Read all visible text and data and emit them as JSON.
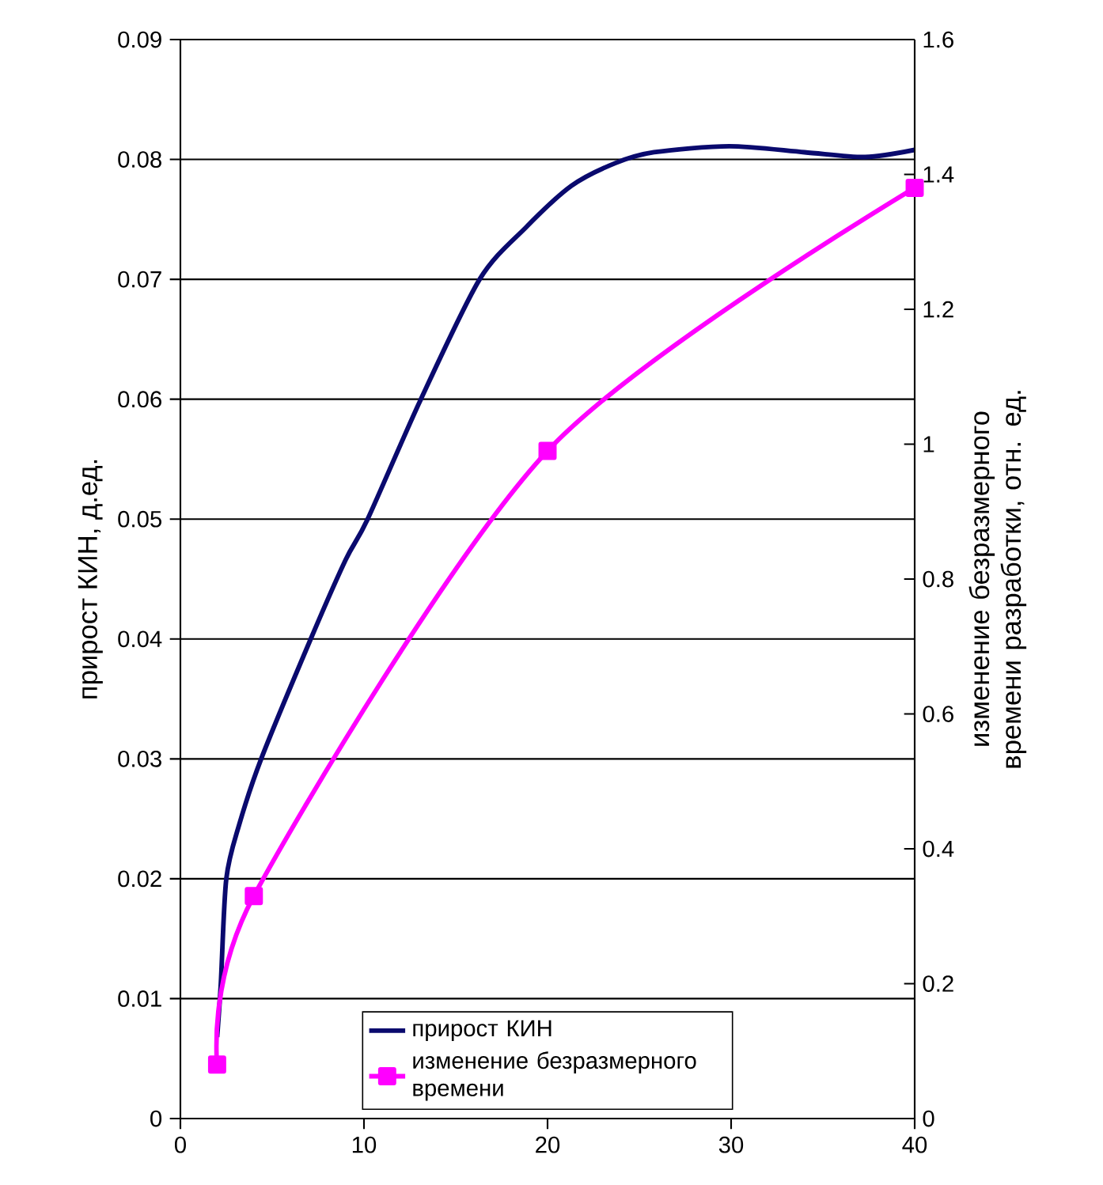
{
  "chart_data": {
    "type": "line",
    "ylabel": "прирост КИН, д.ед.",
    "y2label": "изменение безразмерного времени разработки, отн. ед.",
    "xlim": [
      0,
      40
    ],
    "xticks": [
      0,
      10,
      20,
      30,
      40
    ],
    "ylim": [
      0,
      0.09
    ],
    "yticks": [
      0,
      0.01,
      0.02,
      0.03,
      0.04,
      0.05,
      0.06,
      0.07,
      0.08,
      0.09
    ],
    "y2lim": [
      0,
      1.6
    ],
    "y2ticks": [
      0,
      0.2,
      0.4,
      0.6,
      0.8,
      1,
      1.2,
      1.4,
      1.6
    ],
    "grid": "y",
    "legend": "bottom",
    "series": [
      {
        "name": "прирост КИН",
        "color": "#0a0a6e",
        "marker": "none",
        "x": [
          2,
          2.2,
          2.5,
          3.2,
          4.4,
          7.1,
          9,
          10.2,
          13.1,
          16.3,
          18.8,
          21.3,
          23.7,
          25.8,
          29.9,
          34,
          37.3,
          40
        ],
        "values": [
          0.0068,
          0.0112,
          0.02,
          0.0245,
          0.03,
          0.04,
          0.0466,
          0.05,
          0.06,
          0.07,
          0.0743,
          0.0778,
          0.0797,
          0.0806,
          0.0811,
          0.0806,
          0.0802,
          0.0808
        ]
      },
      {
        "name": "изменение безразмерного времени",
        "color": "#ff00ff",
        "marker": "square",
        "axis": "y2",
        "x": [
          2,
          4,
          20,
          40
        ],
        "values": [
          0.08,
          0.33,
          0.99,
          1.38
        ]
      }
    ]
  }
}
